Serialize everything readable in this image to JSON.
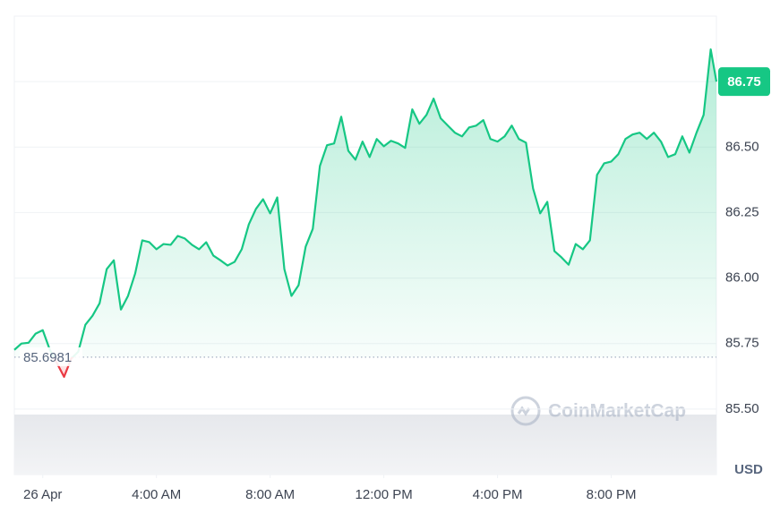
{
  "chart_data": {
    "type": "line",
    "color": "#16c784",
    "down_color": "#ea3943",
    "grid": true,
    "reference_value": 85.6981,
    "price_label": 86.75,
    "y_unit": "USD",
    "watermark": "CoinMarketCap",
    "xlim": [
      -1,
      23.7
    ],
    "xticks": [
      {
        "value": 0,
        "label": "26 Apr"
      },
      {
        "value": 4,
        "label": "4:00 AM"
      },
      {
        "value": 8,
        "label": "8:00 AM"
      },
      {
        "value": 12,
        "label": "12:00 PM"
      },
      {
        "value": 16,
        "label": "4:00 PM"
      },
      {
        "value": 20,
        "label": "8:00 PM"
      }
    ],
    "ylim": [
      85.25,
      87.0
    ],
    "yticks": [
      {
        "value": 85.5,
        "label": "85.50"
      },
      85.75,
      {
        "value": 86,
        "label": "86.00"
      },
      86.25,
      {
        "value": 86.5,
        "label": "86.50"
      },
      86.75
    ],
    "x": [
      -1,
      -0.75,
      -0.5,
      -0.25,
      0,
      0.25,
      0.5,
      0.75,
      1,
      1.25,
      1.5,
      1.75,
      2,
      2.25,
      2.5,
      2.75,
      3,
      3.25,
      3.5,
      3.75,
      4,
      4.25,
      4.5,
      4.75,
      5,
      5.25,
      5.5,
      5.75,
      6,
      6.25,
      6.5,
      6.75,
      7,
      7.25,
      7.5,
      7.75,
      8,
      8.25,
      8.5,
      8.75,
      9,
      9.25,
      9.5,
      9.75,
      10,
      10.25,
      10.5,
      10.75,
      11,
      11.25,
      11.5,
      11.75,
      12,
      12.25,
      12.5,
      12.75,
      13,
      13.25,
      13.5,
      13.75,
      14,
      14.25,
      14.5,
      14.75,
      15,
      15.25,
      15.5,
      15.75,
      16,
      16.25,
      16.5,
      16.75,
      17,
      17.25,
      17.5,
      17.75,
      18,
      18.25,
      18.5,
      18.75,
      19,
      19.25,
      19.5,
      19.75,
      20,
      20.25,
      20.5,
      20.75,
      21,
      21.25,
      21.5,
      21.75,
      22,
      22.25,
      22.5,
      22.75,
      23,
      23.25,
      23.5,
      23.7
    ],
    "values": [
      85.726,
      85.75,
      85.753,
      85.788,
      85.801,
      85.726,
      85.675,
      85.623,
      85.692,
      85.719,
      85.822,
      85.856,
      85.904,
      86.034,
      86.068,
      85.88,
      85.932,
      86.017,
      86.144,
      86.137,
      86.11,
      86.13,
      86.127,
      86.161,
      86.151,
      86.127,
      86.11,
      86.137,
      86.086,
      86.068,
      86.048,
      86.062,
      86.11,
      86.205,
      86.264,
      86.301,
      86.247,
      86.308,
      86.034,
      85.932,
      85.973,
      86.12,
      86.188,
      86.428,
      86.507,
      86.514,
      86.616,
      86.486,
      86.452,
      86.521,
      86.462,
      86.531,
      86.503,
      86.524,
      86.514,
      86.497,
      86.644,
      86.589,
      86.623,
      86.685,
      86.61,
      86.582,
      86.555,
      86.541,
      86.575,
      86.582,
      86.603,
      86.531,
      86.521,
      86.541,
      86.582,
      86.531,
      86.517,
      86.342,
      86.247,
      86.291,
      86.103,
      86.079,
      86.051,
      86.13,
      86.11,
      86.144,
      86.394,
      86.438,
      86.445,
      86.473,
      86.531,
      86.548,
      86.555,
      86.531,
      86.555,
      86.521,
      86.462,
      86.473,
      86.541,
      86.479,
      86.555,
      86.623,
      86.873,
      86.75
    ]
  }
}
